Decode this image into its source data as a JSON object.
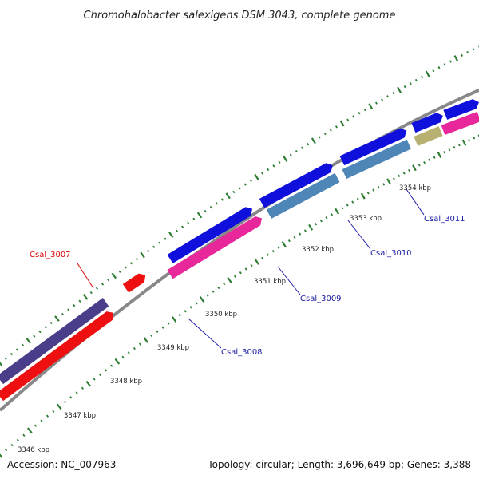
{
  "header": {
    "title": "Chromohalobacter salexigens DSM 3043, complete genome"
  },
  "footer": {
    "accession": "Accession: NC_007963",
    "summary": "Topology: circular; Length: 3,696,649 bp; Genes: 3,388"
  },
  "map": {
    "backbone_color": "#888888",
    "tick_color": "#2e7d32",
    "scale_ticks": [
      "3346 kbp",
      "3347 kbp",
      "3348 kbp",
      "3349 kbp",
      "3350 kbp",
      "3351 kbp",
      "3352 kbp",
      "3353 kbp",
      "3354 kbp"
    ],
    "gene_labels": [
      {
        "text": "Csal_3007",
        "color": "#dd0000"
      },
      {
        "text": "Csal_3008",
        "color": "#1a1aa6"
      },
      {
        "text": "Csal_3009",
        "color": "#1a1aa6"
      },
      {
        "text": "Csal_3010",
        "color": "#1a1aa6"
      },
      {
        "text": "Csal_3011",
        "color": "#1a1aa6"
      }
    ],
    "feature_colors": {
      "blue": "#1010dd",
      "magenta": "#e8289a",
      "steel": "#4f86b8",
      "olive": "#b8b070",
      "purple": "#4a3d8a",
      "red": "#ee1010",
      "salmon": "#ee8888"
    }
  }
}
